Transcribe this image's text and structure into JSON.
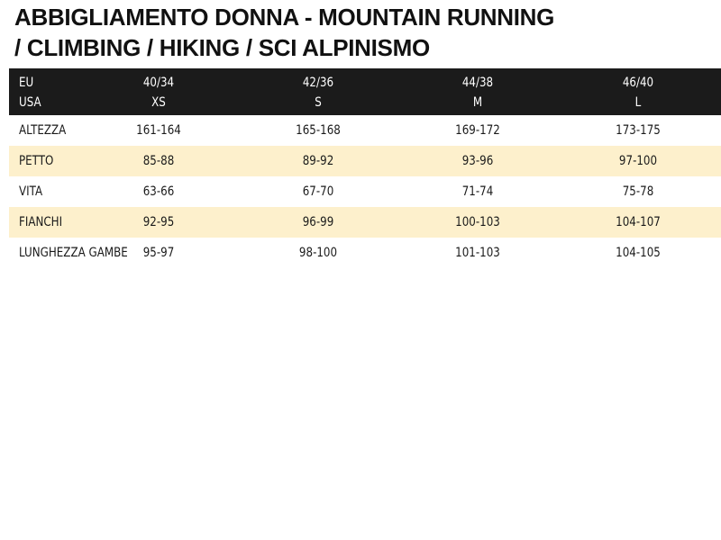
{
  "title_line1": "ABBIGLIAMENTO DONNA - MOUNTAIN RUNNING",
  "title_line2": "/ CLIMBING / HIKING / SCI ALPINISMO",
  "header": {
    "label_eu": "EU",
    "label_usa": "USA",
    "sizes": [
      {
        "eu": "40/34",
        "usa": "XS"
      },
      {
        "eu": "42/36",
        "usa": "S"
      },
      {
        "eu": "44/38",
        "usa": "M"
      },
      {
        "eu": "46/40",
        "usa": "L"
      }
    ]
  },
  "rows": [
    {
      "label": "ALTEZZA",
      "values": [
        "161-164",
        "165-168",
        "169-172",
        "173-175"
      ]
    },
    {
      "label": "PETTO",
      "values": [
        "85-88",
        "89-92",
        "93-96",
        "97-100"
      ]
    },
    {
      "label": "VITA",
      "values": [
        "63-66",
        "67-70",
        "71-74",
        "75-78"
      ]
    },
    {
      "label": "FIANCHI",
      "values": [
        "92-95",
        "96-99",
        "100-103",
        "104-107"
      ]
    },
    {
      "label": "LUNGHEZZA GAMBE",
      "values": [
        "95-97",
        "98-100",
        "101-103",
        "104-105"
      ]
    }
  ],
  "colors": {
    "header_bg": "#1b1b1b",
    "stripe_bg": "#fdf0cc",
    "text": "#1a1a1a"
  }
}
